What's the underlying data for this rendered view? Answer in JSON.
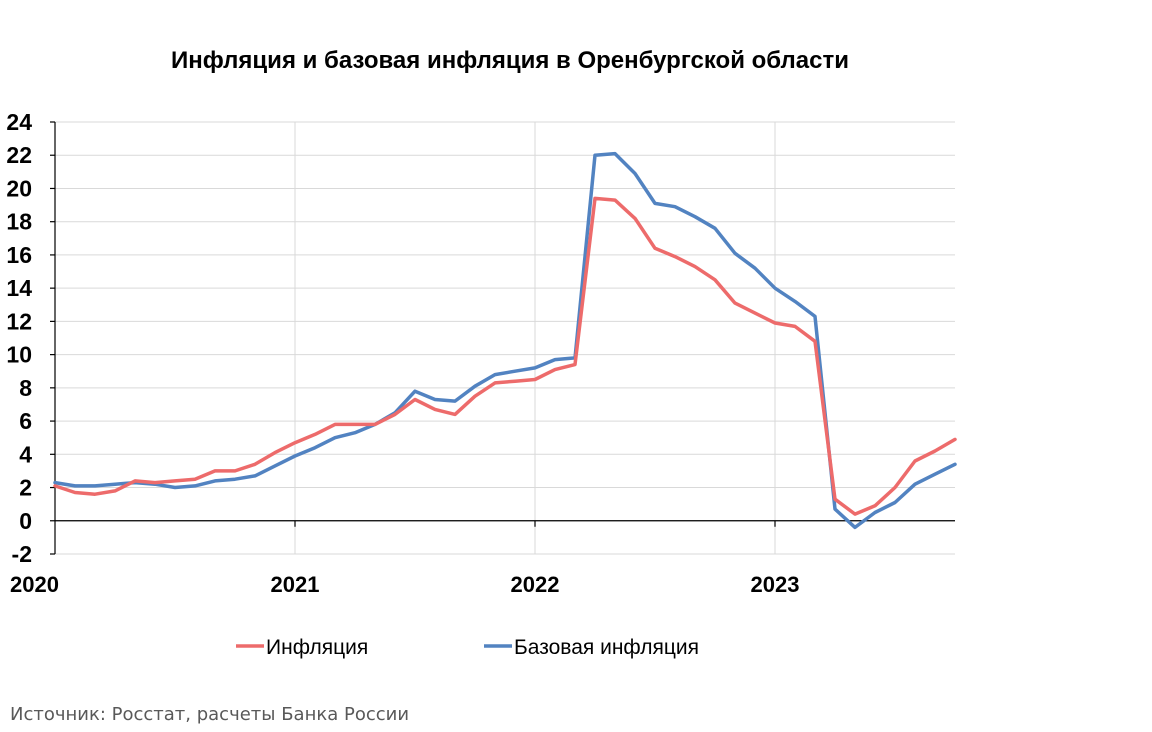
{
  "chart_data": {
    "type": "line",
    "title": "Инфляция и базовая инфляция в Оренбургской области",
    "xlabel": "",
    "ylabel": "",
    "ylim": [
      -2,
      24
    ],
    "yticks": [
      "-2",
      "0",
      "2",
      "4",
      "6",
      "8",
      "10",
      "12",
      "14",
      "16",
      "18",
      "20",
      "22",
      "24"
    ],
    "xticks": [
      "2020",
      "2021",
      "2022",
      "2023"
    ],
    "grid": true,
    "legend_position": "bottom",
    "series": [
      {
        "name": "Инфляция",
        "color": "#ED6B6B",
        "values": [
          2.1,
          1.7,
          1.6,
          1.8,
          2.4,
          2.3,
          2.4,
          2.5,
          3.0,
          3.0,
          3.4,
          4.1,
          4.7,
          5.2,
          5.8,
          5.8,
          5.8,
          6.4,
          7.3,
          6.7,
          6.4,
          7.5,
          8.3,
          8.4,
          8.5,
          9.1,
          9.4,
          19.4,
          19.3,
          18.2,
          16.4,
          15.9,
          15.3,
          14.5,
          13.1,
          12.5,
          11.9,
          11.7,
          10.8,
          1.3,
          0.4,
          0.9,
          2.0,
          3.6,
          4.2,
          4.9
        ]
      },
      {
        "name": "Базовая инфляция",
        "color": "#5283C1",
        "values": [
          2.3,
          2.1,
          2.1,
          2.2,
          2.3,
          2.2,
          2.0,
          2.1,
          2.4,
          2.5,
          2.7,
          3.3,
          3.9,
          4.4,
          5.0,
          5.3,
          5.8,
          6.5,
          7.8,
          7.3,
          7.2,
          8.1,
          8.8,
          9.0,
          9.2,
          9.7,
          9.8,
          22.0,
          22.1,
          20.9,
          19.1,
          18.9,
          18.3,
          17.6,
          16.1,
          15.2,
          14.0,
          13.2,
          12.3,
          0.7,
          -0.4,
          0.5,
          1.1,
          2.2,
          2.8,
          3.4
        ]
      }
    ]
  },
  "source": "Источник: Росстат, расчеты Банка России"
}
